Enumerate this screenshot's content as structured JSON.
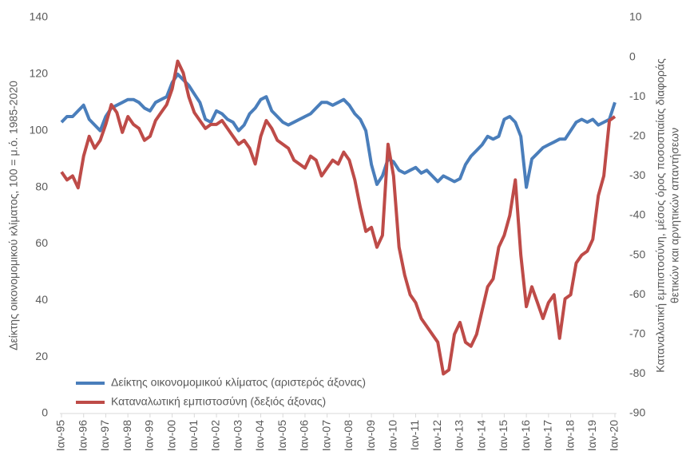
{
  "chart_data": {
    "type": "line",
    "y_label": "Δείκτης οικονομομικού κλίματος, 100 = μ.ό. 1985-2020",
    "y2_label": [
      "Καταναλωτική εμπιστοσύνη, μέσος όρος ποσοστιαίας διαφοράς",
      "θετικών και αρνητικών απαντήσεων"
    ],
    "categories": [
      "Ιαν-95",
      null,
      null,
      null,
      "Ιαν-96",
      null,
      null,
      null,
      "Ιαν-97",
      null,
      null,
      null,
      "Ιαν-98",
      null,
      null,
      null,
      "Ιαν-99",
      null,
      null,
      null,
      "Ιαν-00",
      null,
      null,
      null,
      "Ιαν-01",
      null,
      null,
      null,
      "Ιαν-02",
      null,
      null,
      null,
      "Ιαν-03",
      null,
      null,
      null,
      "Ιαν-04",
      null,
      null,
      null,
      "Ιαν-05",
      null,
      null,
      null,
      "Ιαν-06",
      null,
      null,
      null,
      "Ιαν-07",
      null,
      null,
      null,
      "Ιαν-08",
      null,
      null,
      null,
      "Ιαν-09",
      null,
      null,
      null,
      "Ιαν-10",
      null,
      null,
      null,
      "Ιαν-11",
      null,
      null,
      null,
      "Ιαν-12",
      null,
      null,
      null,
      "Ιαν-13",
      null,
      null,
      null,
      "Ιαν-14",
      null,
      null,
      null,
      "Ιαν-15",
      null,
      null,
      null,
      "Ιαν-16",
      null,
      null,
      null,
      "Ιαν-17",
      null,
      null,
      null,
      "Ιαν-18",
      null,
      null,
      null,
      "Ιαν-19",
      null,
      null,
      null,
      "Ιαν-20"
    ],
    "series": [
      {
        "name": "Δείκτης οικονομομικού κλίματος (αριστερός άξονας)",
        "color": "#4a7ebb",
        "values": [
          103,
          105,
          105,
          107,
          109,
          104,
          102,
          100,
          105,
          108,
          109,
          110,
          111,
          111,
          110,
          108,
          107,
          110,
          111,
          112,
          117,
          120,
          118,
          116,
          113,
          110,
          104,
          103,
          107,
          106,
          104,
          103,
          100,
          102,
          106,
          108,
          111,
          112,
          107,
          105,
          103,
          102,
          103,
          104,
          105,
          106,
          108,
          110,
          110,
          109,
          110,
          111,
          109,
          106,
          104,
          100,
          88,
          81,
          84,
          90,
          89,
          86,
          85,
          86,
          87,
          85,
          86,
          84,
          82,
          84,
          83,
          82,
          83,
          88,
          91,
          93,
          95,
          98,
          97,
          98,
          104,
          105,
          103,
          98,
          80,
          90,
          92,
          94,
          95,
          96,
          97,
          97,
          100,
          103,
          104,
          103,
          104,
          102,
          103,
          104,
          110
        ]
      },
      {
        "name": "Καταναλωτική εμπιστοσύνη (δεξιός άξονας)",
        "color": "#be4b48",
        "axis": "y2",
        "values": [
          -29,
          -31,
          -30,
          -33,
          -25,
          -20,
          -23,
          -21,
          -17,
          -12,
          -14,
          -19,
          -15,
          -17,
          -18,
          -21,
          -20,
          -16,
          -14,
          -12,
          -8,
          -1,
          -4,
          -10,
          -14,
          -16,
          -18,
          -17,
          -17,
          -16,
          -18,
          -20,
          -22,
          -21,
          -23,
          -27,
          -20,
          -16,
          -18,
          -21,
          -22,
          -23,
          -26,
          -27,
          -28,
          -25,
          -26,
          -30,
          -28,
          -26,
          -27,
          -24,
          -26,
          -31,
          -38,
          -44,
          -43,
          -48,
          -45,
          -22,
          -30,
          -48,
          -55,
          -60,
          -62,
          -66,
          -68,
          -70,
          -72,
          -80,
          -79,
          -70,
          -67,
          -72,
          -73,
          -70,
          -64,
          -58,
          -56,
          -48,
          -45,
          -40,
          -31,
          -50,
          -63,
          -58,
          -62,
          -66,
          -62,
          -60,
          -71,
          -61,
          -60,
          -52,
          -50,
          -49,
          -46,
          -35,
          -30,
          -16,
          -15
        ]
      }
    ],
    "ylim": [
      0,
      140
    ],
    "yticks": [
      0,
      20,
      40,
      60,
      80,
      100,
      120,
      140
    ],
    "y2lim": [
      -90,
      10
    ],
    "y2ticks": [
      -90,
      -80,
      -70,
      -60,
      -50,
      -40,
      -30,
      -20,
      -10,
      0,
      10
    ],
    "legend": "lower left"
  }
}
